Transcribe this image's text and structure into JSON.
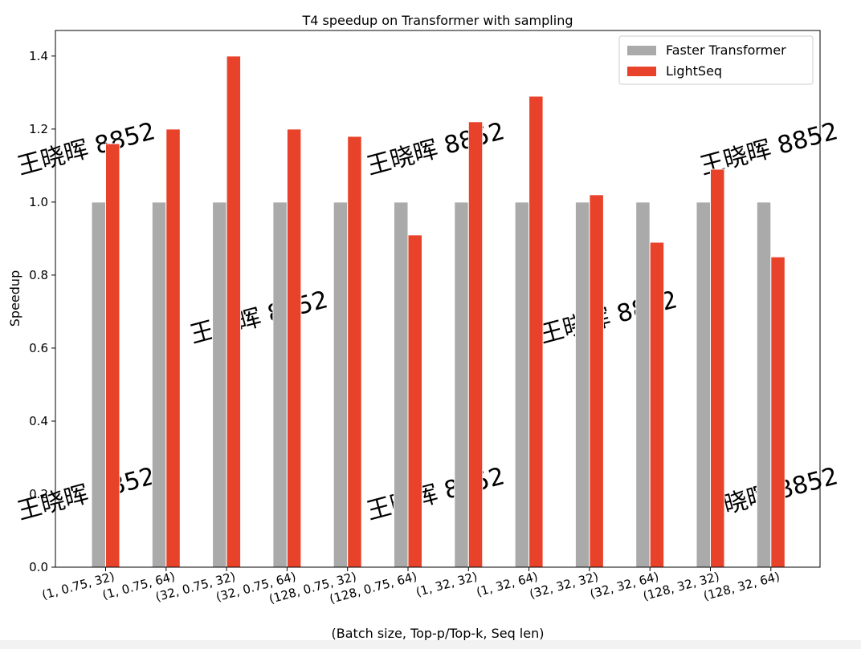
{
  "chart_data": {
    "type": "bar",
    "title": "T4 speedup on Transformer with sampling",
    "xlabel": "(Batch size, Top-p/Top-k, Seq len)",
    "ylabel": "Speedup",
    "ylim": [
      0,
      1.47
    ],
    "yticks": [
      "0.0",
      "0.2",
      "0.4",
      "0.6",
      "0.8",
      "1.0",
      "1.2",
      "1.4"
    ],
    "grid": false,
    "legend_position": "top-right",
    "categories": [
      "(1, 0.75, 32)",
      "(1, 0.75, 64)",
      "(32, 0.75, 32)",
      "(32, 0.75, 64)",
      "(128, 0.75, 32)",
      "(128, 0.75, 64)",
      "(1, 32, 32)",
      "(1, 32, 64)",
      "(32, 32, 32)",
      "(32, 32, 64)",
      "(128, 32, 32)",
      "(128, 32, 64)"
    ],
    "series": [
      {
        "name": "Faster Transformer",
        "color": "#aaaaaa",
        "values": [
          1,
          1,
          1,
          1,
          1,
          1,
          1,
          1,
          1,
          1,
          1,
          1
        ]
      },
      {
        "name": "LightSeq",
        "color": "#e8432a",
        "values": [
          1.16,
          1.2,
          1.4,
          1.2,
          1.18,
          0.91,
          1.22,
          1.29,
          1.02,
          0.89,
          1.09,
          0.85
        ]
      }
    ]
  },
  "watermark": "王晓晖 8852"
}
